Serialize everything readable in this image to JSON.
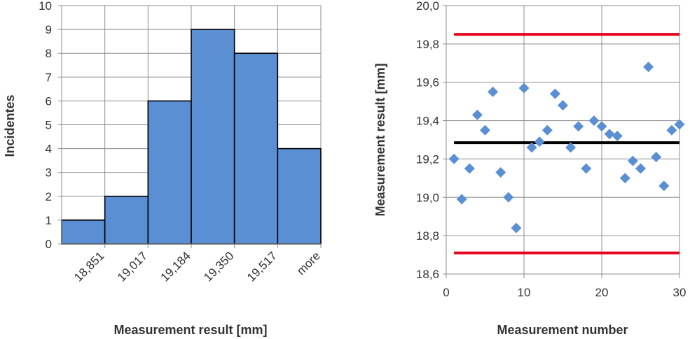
{
  "chart_data": [
    {
      "type": "bar",
      "categories": [
        "18,851",
        "19,017",
        "19,184",
        "19,350",
        "19,517",
        "more"
      ],
      "values": [
        1,
        2,
        6,
        9,
        8,
        4
      ],
      "xlabel": "Measurement result [mm]",
      "ylabel": "Incidentes",
      "ylim": [
        0,
        10
      ],
      "yticks": [
        "0",
        "1",
        "2",
        "3",
        "4",
        "5",
        "6",
        "7",
        "8",
        "9",
        "10"
      ],
      "bar_color": "#5B8FD4",
      "grid": true
    },
    {
      "type": "scatter",
      "x": [
        1,
        2,
        3,
        4,
        5,
        6,
        7,
        8,
        9,
        10,
        11,
        12,
        13,
        14,
        15,
        16,
        17,
        18,
        19,
        20,
        21,
        22,
        23,
        24,
        25,
        26,
        27,
        28,
        29,
        30
      ],
      "y": [
        19.2,
        18.99,
        19.15,
        19.43,
        19.35,
        19.55,
        19.13,
        19.0,
        18.84,
        19.57,
        19.26,
        19.29,
        19.35,
        19.54,
        19.48,
        19.26,
        19.37,
        19.15,
        19.4,
        19.37,
        19.33,
        19.32,
        19.1,
        19.19,
        19.15,
        19.68,
        19.21,
        19.06,
        19.35,
        19.38
      ],
      "reference_lines": [
        {
          "y": 19.85,
          "color": "#E8001C"
        },
        {
          "y": 19.285,
          "color": "#000000"
        },
        {
          "y": 18.71,
          "color": "#E8001C"
        }
      ],
      "xlabel": "Measurement number",
      "ylabel": "Measurement result [mm]",
      "xlim": [
        0,
        30
      ],
      "ylim": [
        18.6,
        20.0
      ],
      "xticks": [
        "0",
        "10",
        "20",
        "30"
      ],
      "yticks": [
        "18,6",
        "18,8",
        "19,0",
        "19,2",
        "19,4",
        "19,6",
        "19,8",
        "20,0"
      ],
      "marker_color": "#5B8FD4",
      "grid": true
    }
  ]
}
